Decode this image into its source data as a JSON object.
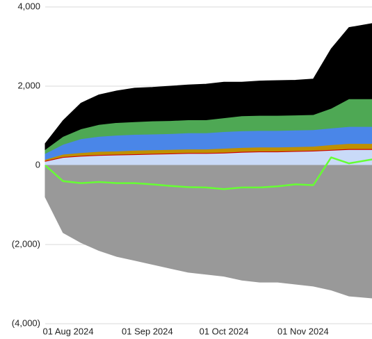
{
  "chart_data": {
    "type": "stacked_area",
    "x": [
      "2024-07-23",
      "2024-07-30",
      "2024-08-06",
      "2024-08-13",
      "2024-08-20",
      "2024-08-27",
      "2024-09-03",
      "2024-09-10",
      "2024-09-17",
      "2024-09-24",
      "2024-10-01",
      "2024-10-08",
      "2024-10-15",
      "2024-10-22",
      "2024-10-29",
      "2024-11-05",
      "2024-11-12",
      "2024-11-19",
      "2024-11-28"
    ],
    "xlim": [
      "2024-07-23",
      "2024-11-28"
    ],
    "xticks": [
      {
        "value": "2024-08-01",
        "label": "01 Aug 2024"
      },
      {
        "value": "2024-09-01",
        "label": "01 Sep 2024"
      },
      {
        "value": "2024-10-01",
        "label": "01 Oct 2024"
      },
      {
        "value": "2024-11-01",
        "label": "01 Nov 2024"
      }
    ],
    "ylim": [
      -4000,
      4000
    ],
    "yticks": [
      {
        "value": -4000,
        "label": "(4,000)"
      },
      {
        "value": -2000,
        "label": "(2,000)"
      },
      0,
      {
        "value": 2000,
        "label": "2,000"
      },
      {
        "value": 4000,
        "label": "4,000"
      }
    ],
    "grid": true,
    "series": [
      {
        "color": "#c9daf8",
        "values": [
          100,
          200,
          230,
          250,
          260,
          270,
          280,
          290,
          300,
          300,
          310,
          330,
          340,
          340,
          350,
          360,
          380,
          400,
          400
        ]
      },
      {
        "color": "#cc0000",
        "values": [
          20,
          20,
          20,
          20,
          20,
          20,
          20,
          20,
          20,
          20,
          20,
          20,
          20,
          20,
          20,
          20,
          20,
          20,
          20
        ]
      },
      {
        "color": "#bf9000",
        "values": [
          30,
          60,
          70,
          80,
          80,
          90,
          90,
          90,
          90,
          90,
          100,
          100,
          100,
          100,
          100,
          100,
          120,
          130,
          130
        ]
      },
      {
        "color": "#4a86e8",
        "values": [
          150,
          250,
          350,
          380,
          400,
          400,
          400,
          400,
          410,
          410,
          420,
          420,
          420,
          420,
          420,
          420,
          420,
          430,
          430
        ]
      },
      {
        "color": "#4ea854",
        "values": [
          100,
          200,
          250,
          300,
          320,
          320,
          330,
          330,
          330,
          330,
          350,
          380,
          380,
          380,
          380,
          380,
          500,
          700,
          700
        ]
      },
      {
        "color": "#000000",
        "values": [
          150,
          400,
          650,
          750,
          800,
          850,
          850,
          870,
          880,
          900,
          900,
          850,
          870,
          880,
          880,
          900,
          1500,
          1800,
          1900
        ]
      },
      {
        "color": "#999999",
        "values": [
          -800,
          -1700,
          -1950,
          -2150,
          -2300,
          -2400,
          -2500,
          -2600,
          -2700,
          -2750,
          -2800,
          -2900,
          -2950,
          -2950,
          -3000,
          -3050,
          -3150,
          -3300,
          -3350
        ]
      },
      {
        "color": "#66ff33",
        "line": true,
        "values": [
          0,
          -400,
          -450,
          -420,
          -450,
          -450,
          -480,
          -520,
          -550,
          -560,
          -600,
          -560,
          -560,
          -530,
          -480,
          -500,
          200,
          50,
          150
        ]
      }
    ]
  }
}
